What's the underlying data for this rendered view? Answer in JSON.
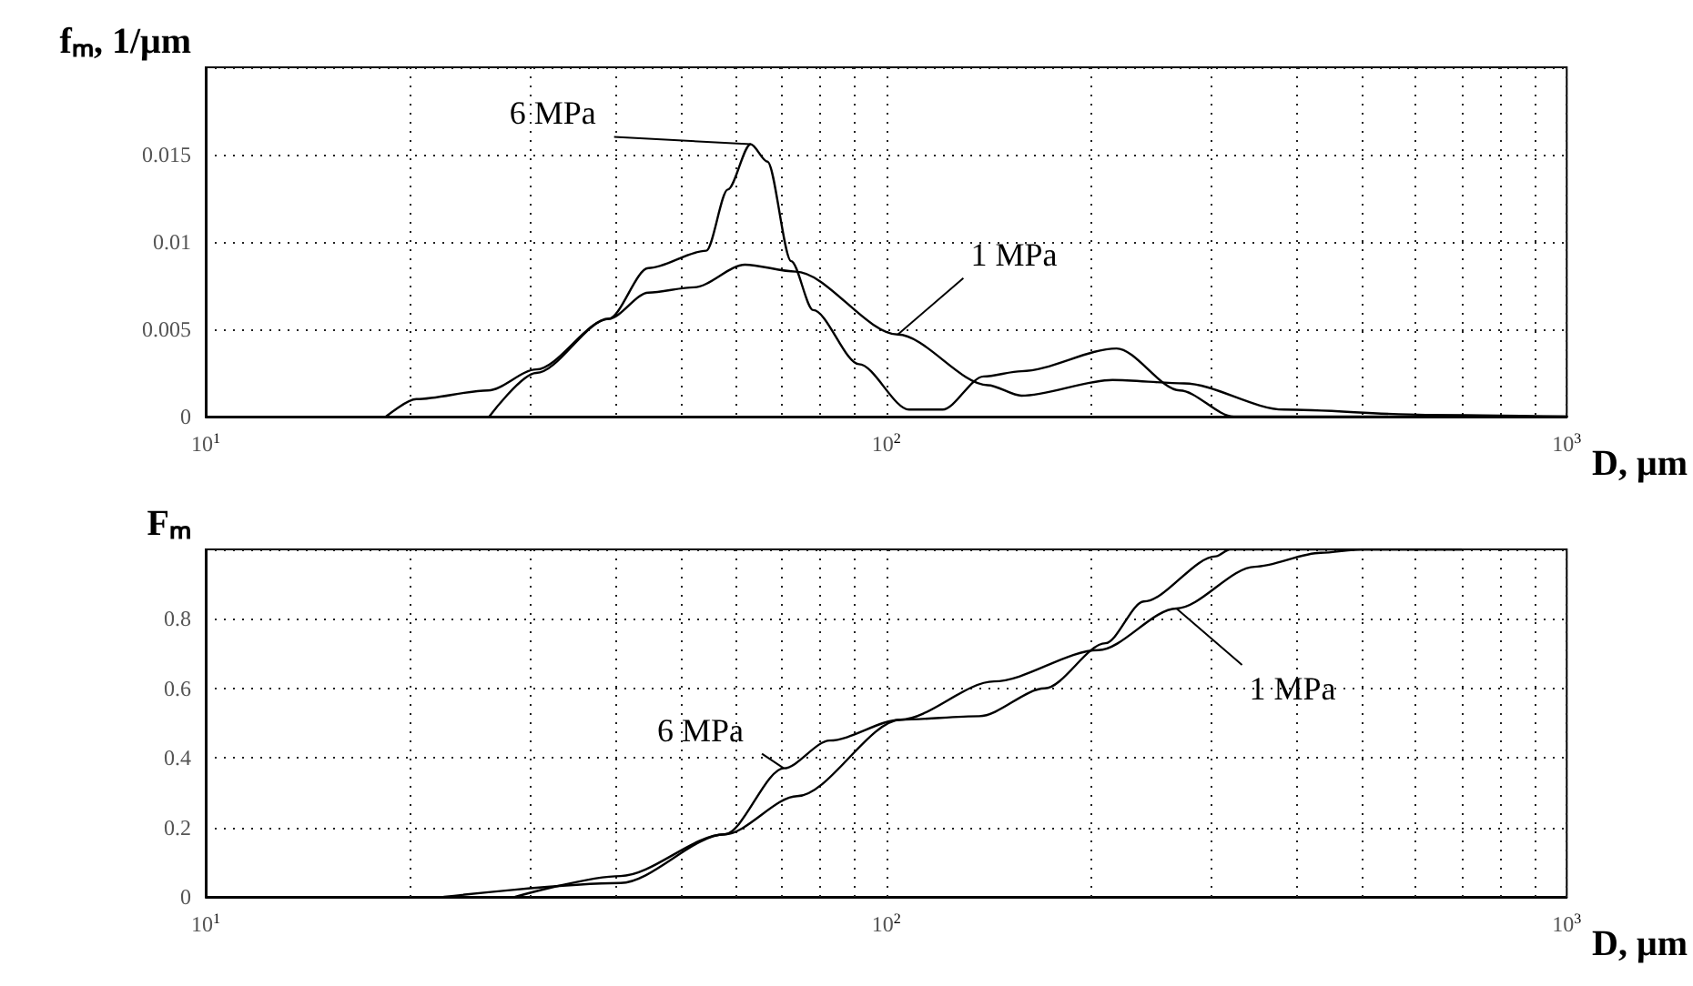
{
  "chart_data": [
    {
      "type": "line",
      "ylabel": "fₘ, 1/μm",
      "xlabel": "D, μm",
      "log": "x",
      "grid": true,
      "marker": "none",
      "line_style": "solid",
      "xlim": [
        10,
        1000
      ],
      "xticks": [
        {
          "value": 10,
          "label": "10$^{1}$"
        },
        {
          "value": 20,
          "label": null
        },
        {
          "value": 30,
          "label": null
        },
        {
          "value": 40,
          "label": null
        },
        {
          "value": 50,
          "label": null
        },
        {
          "value": 60,
          "label": null
        },
        {
          "value": 70,
          "label": null
        },
        {
          "value": 80,
          "label": null
        },
        {
          "value": 90,
          "label": null
        },
        {
          "value": 100,
          "label": "10$^{2}$"
        },
        {
          "value": 200,
          "label": null
        },
        {
          "value": 300,
          "label": null
        },
        {
          "value": 400,
          "label": null
        },
        {
          "value": 500,
          "label": null
        },
        {
          "value": 600,
          "label": null
        },
        {
          "value": 700,
          "label": null
        },
        {
          "value": 800,
          "label": null
        },
        {
          "value": 900,
          "label": null
        },
        {
          "value": 1000,
          "label": "10$^{3}$"
        }
      ],
      "ylim": [
        0,
        0.02
      ],
      "yticks": [
        0,
        0.005,
        0.01,
        0.015,
        {
          "value": 0.02,
          "label": null
        }
      ],
      "series": [
        {
          "name": "6 MPa",
          "color": "#000000",
          "x": [
            26.1,
            30.6,
            39.1,
            44.7,
            54.4,
            58.5,
            63.2,
            66.9,
            72.5,
            78.1,
            91.2,
            108,
            121,
            139,
            158,
            218,
            270,
            324,
            1000
          ],
          "values": [
            0,
            0.0025,
            0.0056,
            0.0085,
            0.0095,
            0.013,
            0.0156,
            0.0146,
            0.0089,
            0.0061,
            0.003,
            0.0004,
            0.0004,
            0.0023,
            0.0026,
            0.0039,
            0.0015,
            0,
            0
          ]
        },
        {
          "name": "1 MPa",
          "color": "#000000",
          "x": [
            18.4,
            20.4,
            26,
            30.6,
            39.1,
            44.7,
            52.2,
            62,
            73.6,
            104,
            141,
            158,
            215,
            274,
            384,
            620,
            1000
          ],
          "values": [
            0,
            0.001,
            0.0015,
            0.0027,
            0.0056,
            0.0071,
            0.0074,
            0.0087,
            0.0083,
            0.0047,
            0.0018,
            0.0012,
            0.0021,
            0.0019,
            0.0004,
            0.0001,
            0
          ]
        }
      ]
    },
    {
      "type": "line",
      "ylabel": "Fₘ",
      "xlabel": "D, μm",
      "log": "x",
      "grid": true,
      "marker": "none",
      "line_style": "solid",
      "xlim": [
        10,
        1000
      ],
      "xticks": [
        {
          "value": 10,
          "label": "10$^{1}$"
        },
        {
          "value": 20,
          "label": null
        },
        {
          "value": 30,
          "label": null
        },
        {
          "value": 40,
          "label": null
        },
        {
          "value": 50,
          "label": null
        },
        {
          "value": 60,
          "label": null
        },
        {
          "value": 70,
          "label": null
        },
        {
          "value": 80,
          "label": null
        },
        {
          "value": 90,
          "label": null
        },
        {
          "value": 100,
          "label": "10$^{2}$"
        },
        {
          "value": 200,
          "label": null
        },
        {
          "value": 300,
          "label": null
        },
        {
          "value": 400,
          "label": null
        },
        {
          "value": 500,
          "label": null
        },
        {
          "value": 600,
          "label": null
        },
        {
          "value": 700,
          "label": null
        },
        {
          "value": 800,
          "label": null
        },
        {
          "value": 900,
          "label": null
        },
        {
          "value": 1000,
          "label": "10$^{3}$"
        }
      ],
      "ylim": [
        0,
        1
      ],
      "yticks": [
        0,
        0.2,
        0.4,
        0.6,
        0.8,
        {
          "value": 1,
          "label": null
        }
      ],
      "series": [
        {
          "name": "6 MPa",
          "color": "#000000",
          "x": [
            22.4,
            40.7,
            57.9,
            70.7,
            82.6,
            105,
            137,
            171,
            210,
            239,
            305,
            320,
            700
          ],
          "values": [
            0,
            0.04,
            0.18,
            0.37,
            0.45,
            0.51,
            0.52,
            0.6,
            0.73,
            0.85,
            0.98,
            1,
            1
          ]
        },
        {
          "name": "1 MPa",
          "color": "#000000",
          "x": [
            28.5,
            40.7,
            57.9,
            74,
            105,
            144,
            205,
            267,
            348,
            435,
            500,
            700
          ],
          "values": [
            0,
            0.06,
            0.18,
            0.29,
            0.51,
            0.62,
            0.71,
            0.83,
            0.95,
            0.99,
            1,
            1
          ]
        }
      ]
    }
  ]
}
